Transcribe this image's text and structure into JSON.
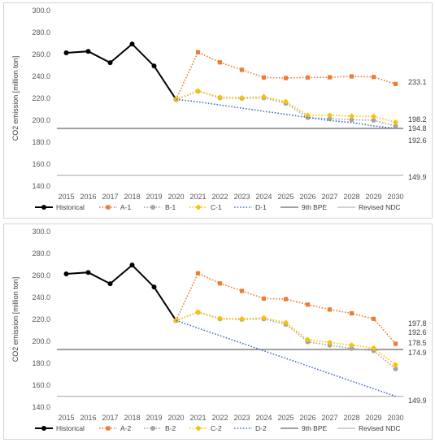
{
  "chart_data": [
    {
      "type": "line",
      "ylabel": "CO2 emission [million ton]",
      "ylim": [
        140,
        300
      ],
      "yticks": [
        "140.0",
        "160.0",
        "180.0",
        "200.0",
        "220.0",
        "240.0",
        "260.0",
        "280.0",
        "300.0"
      ],
      "x": [
        "2015",
        "2016",
        "2017",
        "2018",
        "2019",
        "2020",
        "2021",
        "2022",
        "2023",
        "2024",
        "2025",
        "2026",
        "2027",
        "2028",
        "2029",
        "2030"
      ],
      "series": [
        {
          "name": "Historical",
          "color": "#000000",
          "style": "solid",
          "marker": "circle",
          "values": [
            261.5,
            262.8,
            252.5,
            269.5,
            249.5,
            219.0,
            null,
            null,
            null,
            null,
            null,
            null,
            null,
            null,
            null,
            null
          ]
        },
        {
          "name": "A-1",
          "color": "#ED7D31",
          "style": "dot",
          "marker": "square",
          "values": [
            null,
            null,
            null,
            null,
            null,
            219.0,
            262.0,
            252.8,
            246.0,
            239.0,
            238.5,
            239.0,
            239.2,
            240.0,
            239.5,
            233.1
          ]
        },
        {
          "name": "B-1",
          "color": "#A5A5A5",
          "style": "dot",
          "marker": "circle",
          "values": [
            null,
            null,
            null,
            null,
            null,
            219.0,
            226.5,
            220.5,
            220.0,
            220.5,
            215.5,
            202.5,
            201.5,
            200.5,
            200.0,
            194.8
          ]
        },
        {
          "name": "C-1",
          "color": "#FFC000",
          "style": "dot",
          "marker": "diamond",
          "values": [
            null,
            null,
            null,
            null,
            null,
            219.0,
            226.8,
            221.0,
            220.5,
            221.5,
            217.0,
            204.5,
            204.5,
            203.8,
            203.5,
            198.2
          ]
        },
        {
          "name": "D-1",
          "color": "#4472C4",
          "style": "dot",
          "marker": "none",
          "values": [
            null,
            null,
            null,
            null,
            null,
            219.0,
            216.8,
            213.9,
            211.1,
            208.2,
            205.5,
            202.6,
            199.8,
            197.9,
            194.9,
            192.6
          ]
        },
        {
          "name": "9th BPE",
          "color": "#404040",
          "style": "solid",
          "marker": "none",
          "constant": 192.6
        },
        {
          "name": "Revised NDC",
          "color": "#A6A6A6",
          "style": "solid",
          "marker": "none",
          "constant": 149.9
        }
      ],
      "end_labels": [
        {
          "text": "233.1",
          "value": 233.1
        },
        {
          "text": "198.2",
          "value": 198.2
        },
        {
          "text": "194.8",
          "value": 194.8
        },
        {
          "text": "192.6",
          "value": 192.6
        },
        {
          "text": "149.9",
          "value": 149.9
        }
      ],
      "legend": "bottom"
    },
    {
      "type": "line",
      "ylabel": "CO2 emission [million ton]",
      "ylim": [
        140,
        300
      ],
      "yticks": [
        "140.0",
        "160.0",
        "180.0",
        "200.0",
        "220.0",
        "240.0",
        "260.0",
        "280.0",
        "300.0"
      ],
      "x": [
        "2015",
        "2016",
        "2017",
        "2018",
        "2019",
        "2020",
        "2021",
        "2022",
        "2023",
        "2024",
        "2025",
        "2026",
        "2027",
        "2028",
        "2029",
        "2030"
      ],
      "series": [
        {
          "name": "Historical",
          "color": "#000000",
          "style": "solid",
          "marker": "circle",
          "values": [
            261.5,
            262.8,
            252.5,
            269.5,
            249.5,
            219.0,
            null,
            null,
            null,
            null,
            null,
            null,
            null,
            null,
            null,
            null
          ]
        },
        {
          "name": "A-2",
          "color": "#ED7D31",
          "style": "dot",
          "marker": "square",
          "values": [
            null,
            null,
            null,
            null,
            null,
            219.0,
            262.0,
            252.8,
            246.0,
            239.0,
            238.5,
            233.5,
            229.0,
            225.5,
            220.5,
            197.8
          ]
        },
        {
          "name": "B-2",
          "color": "#A5A5A5",
          "style": "dot",
          "marker": "circle",
          "values": [
            null,
            null,
            null,
            null,
            null,
            219.0,
            226.5,
            220.5,
            220.0,
            220.5,
            215.5,
            199.5,
            196.5,
            193.5,
            191.5,
            174.9
          ]
        },
        {
          "name": "C-2",
          "color": "#FFC000",
          "style": "dot",
          "marker": "diamond",
          "values": [
            null,
            null,
            null,
            null,
            null,
            219.0,
            226.8,
            221.0,
            220.5,
            221.5,
            217.0,
            201.5,
            199.0,
            196.5,
            194.0,
            178.5
          ]
        },
        {
          "name": "D-2",
          "color": "#4472C4",
          "style": "dot",
          "marker": "none",
          "values": [
            null,
            null,
            null,
            null,
            null,
            219.0,
            212.1,
            205.2,
            198.3,
            191.4,
            184.5,
            177.6,
            170.6,
            163.7,
            156.8,
            149.9
          ]
        },
        {
          "name": "9th BPE",
          "color": "#404040",
          "style": "solid",
          "marker": "none",
          "constant": 192.6
        },
        {
          "name": "Revised NDC",
          "color": "#A6A6A6",
          "style": "solid",
          "marker": "none",
          "constant": 149.9
        }
      ],
      "end_labels": [
        {
          "text": "197.8",
          "value": 197.8
        },
        {
          "text": "192.6",
          "value": 192.6
        },
        {
          "text": "178.5",
          "value": 178.5
        },
        {
          "text": "174.9",
          "value": 174.9
        },
        {
          "text": "149.9",
          "value": 149.9
        }
      ],
      "legend": "bottom"
    }
  ]
}
